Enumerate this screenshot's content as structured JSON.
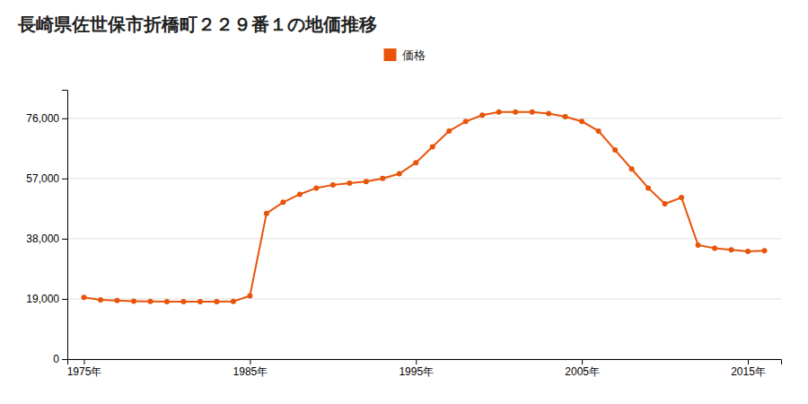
{
  "chart_data": {
    "type": "line",
    "title": "長崎県佐世保市折橋町２２９番１の地価推移",
    "x": [
      1975,
      1976,
      1977,
      1978,
      1979,
      1980,
      1981,
      1982,
      1983,
      1984,
      1985,
      1986,
      1987,
      1988,
      1989,
      1990,
      1991,
      1992,
      1993,
      1994,
      1995,
      1996,
      1997,
      1998,
      1999,
      2000,
      2001,
      2002,
      2003,
      2004,
      2005,
      2006,
      2007,
      2008,
      2009,
      2010,
      2011,
      2012,
      2013,
      2014,
      2015,
      2016
    ],
    "series": [
      {
        "name": "価格",
        "color": "#e8540a",
        "values": [
          19500,
          18700,
          18500,
          18300,
          18200,
          18100,
          18100,
          18100,
          18100,
          18200,
          20000,
          46000,
          49500,
          52000,
          54000,
          55000,
          55500,
          56000,
          57000,
          58500,
          62000,
          67000,
          72000,
          75000,
          77000,
          78000,
          78000,
          78000,
          77500,
          76500,
          75000,
          72000,
          66000,
          60000,
          54000,
          49000,
          51000,
          36000,
          35000,
          34500,
          34000,
          34200
        ]
      }
    ],
    "xlim": [
      1974,
      2017
    ],
    "xticks": [
      {
        "value": 1975,
        "label": "1975年"
      },
      {
        "value": 1985,
        "label": "1985年"
      },
      {
        "value": 1995,
        "label": "1995年"
      },
      {
        "value": 2005,
        "label": "2005年"
      },
      {
        "value": 2015,
        "label": "2015年"
      }
    ],
    "ylim": [
      0,
      85000
    ],
    "yticks": [
      0,
      {
        "value": 19000,
        "label": "19,000"
      },
      {
        "value": 38000,
        "label": "38,000"
      },
      {
        "value": 57000,
        "label": "57,000"
      },
      {
        "value": 76000,
        "label": "76,000"
      }
    ],
    "grid": true,
    "marker": "circle",
    "legend": "top"
  }
}
